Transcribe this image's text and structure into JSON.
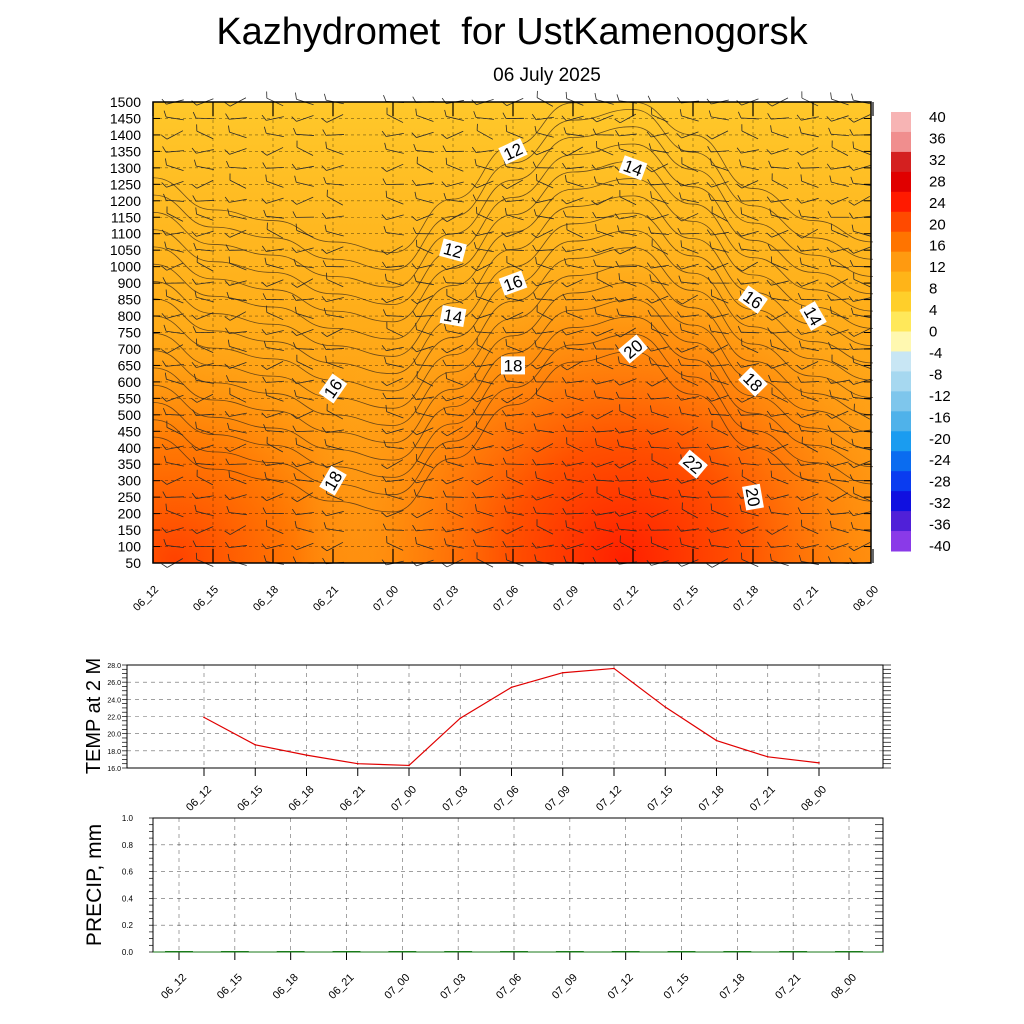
{
  "header": {
    "title": "Kazhydromet  for UstKamenogorsk",
    "date": "06 July 2025"
  },
  "chart_data": [
    {
      "type": "heatmap",
      "x_labels": [
        "06_12",
        "06_15",
        "06_18",
        "06_21",
        "07_00",
        "07_03",
        "07_06",
        "07_09",
        "07_12",
        "07_15",
        "07_18",
        "07_21",
        "08_00"
      ],
      "y_labels": [
        "50",
        "100",
        "150",
        "200",
        "250",
        "300",
        "350",
        "400",
        "450",
        "500",
        "550",
        "600",
        "650",
        "700",
        "750",
        "800",
        "850",
        "900",
        "1000",
        "1050",
        "1100",
        "1150",
        "1200",
        "1250",
        "1300",
        "1350",
        "1400",
        "1450",
        "1500"
      ],
      "colorbar_labels": [
        "40",
        "36",
        "32",
        "28",
        "24",
        "20",
        "16",
        "12",
        "8",
        "4",
        "0",
        "-4",
        "-8",
        "-12",
        "-16",
        "-20",
        "-24",
        "-28",
        "-32",
        "-36",
        "-40"
      ],
      "colorbar_colors": [
        "#f7b4b4",
        "#f08e8e",
        "#d42020",
        "#e00000",
        "#ff1a00",
        "#ff4a00",
        "#ff7400",
        "#ff9a10",
        "#ffb418",
        "#ffcf2a",
        "#ffe85a",
        "#fff8b0",
        "#c8e6f4",
        "#a6d8f0",
        "#7ec6ec",
        "#4fb2ea",
        "#1a9cf0",
        "#0a6cf0",
        "#0a3cf0",
        "#1010e0",
        "#5020d8",
        "#8a3ae8"
      ],
      "contour_labels": [
        {
          "text": "12",
          "time": "07_06",
          "height": 1350
        },
        {
          "text": "14",
          "time": "07_12",
          "height": 1300
        },
        {
          "text": "12",
          "time": "07_03",
          "height": 1050
        },
        {
          "text": "16",
          "time": "07_06",
          "height": 900
        },
        {
          "text": "16",
          "time": "07_18",
          "height": 850
        },
        {
          "text": "14",
          "time": "07_21",
          "height": 800
        },
        {
          "text": "14",
          "time": "07_03",
          "height": 800
        },
        {
          "text": "20",
          "time": "07_12",
          "height": 700
        },
        {
          "text": "18",
          "time": "07_06",
          "height": 650
        },
        {
          "text": "18",
          "time": "07_18",
          "height": 600
        },
        {
          "text": "16",
          "time": "06_21",
          "height": 580
        },
        {
          "text": "22",
          "time": "07_15",
          "height": 350
        },
        {
          "text": "18",
          "time": "06_21",
          "height": 300
        },
        {
          "text": "20",
          "time": "07_18",
          "height": 250
        }
      ]
    },
    {
      "type": "line",
      "ylabel": "TEMP at 2 M",
      "x": [
        "06_12",
        "06_15",
        "06_18",
        "06_21",
        "07_00",
        "07_03",
        "07_06",
        "07_09",
        "07_12",
        "07_15",
        "07_18",
        "07_21",
        "08_00"
      ],
      "values": [
        21.9,
        18.7,
        17.5,
        16.5,
        16.3,
        21.8,
        25.4,
        27.1,
        27.6,
        23.1,
        19.2,
        17.3,
        16.6
      ],
      "ylim": [
        16.0,
        28.0
      ],
      "y_ticks": [
        "28.0",
        "26.0",
        "24.0",
        "22.0",
        "20.0",
        "18.0",
        "16.0"
      ],
      "line_color": "#e00000",
      "grid": true
    },
    {
      "type": "bar",
      "ylabel": "PRECIP, mm",
      "x": [
        "06_12",
        "06_15",
        "06_18",
        "06_21",
        "07_00",
        "07_03",
        "07_06",
        "07_09",
        "07_12",
        "07_15",
        "07_18",
        "07_21",
        "08_00"
      ],
      "values": [
        0,
        0,
        0,
        0,
        0,
        0,
        0,
        0,
        0,
        0,
        0,
        0,
        0
      ],
      "ylim": [
        0.0,
        1.0
      ],
      "y_ticks": [
        "1.0",
        "0.8",
        "0.6",
        "0.4",
        "0.2",
        "0.0"
      ],
      "bar_color": "#1a7a1a",
      "grid": true
    }
  ]
}
